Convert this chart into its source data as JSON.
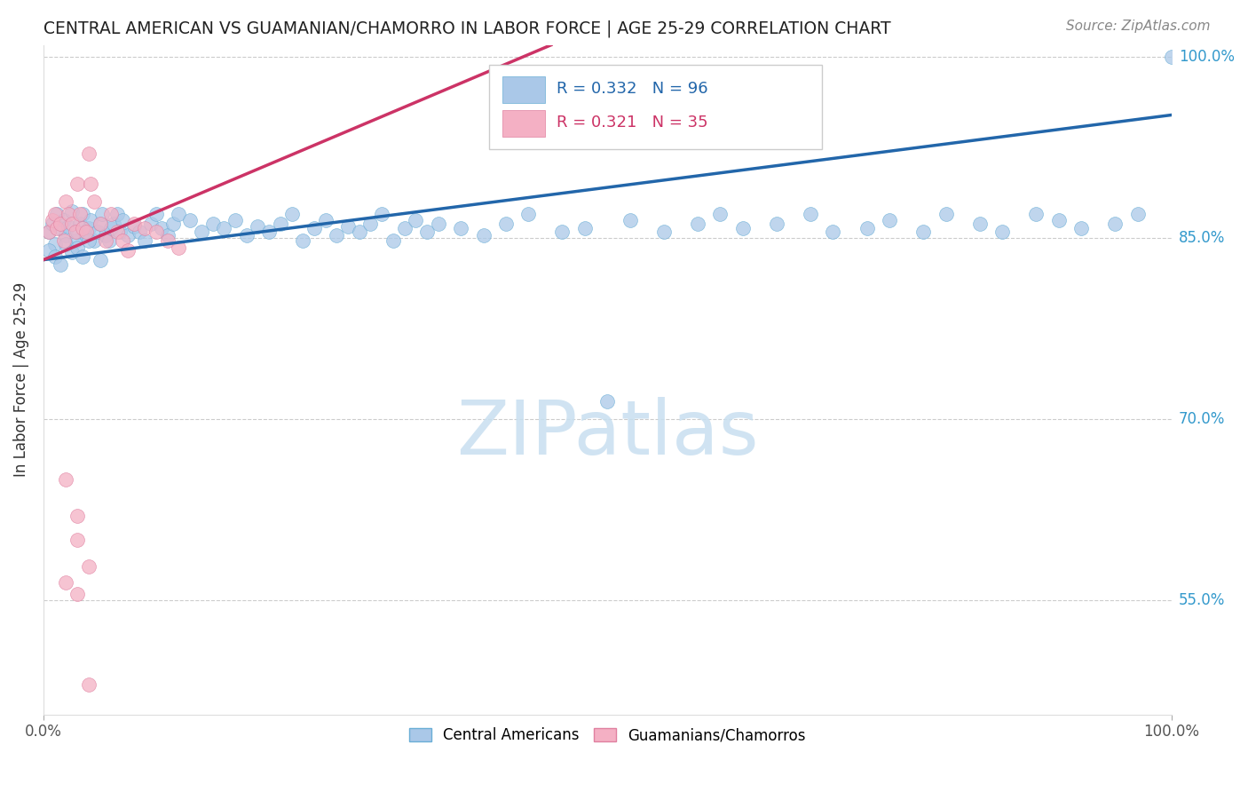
{
  "title": "CENTRAL AMERICAN VS GUAMANIAN/CHAMORRO IN LABOR FORCE | AGE 25-29 CORRELATION CHART",
  "source": "Source: ZipAtlas.com",
  "ylabel": "In Labor Force | Age 25-29",
  "legend_blue_r": "0.332",
  "legend_blue_n": "96",
  "legend_pink_r": "0.321",
  "legend_pink_n": "35",
  "blue_color": "#aac8e8",
  "blue_edge_color": "#6aaed6",
  "blue_line_color": "#2266aa",
  "pink_color": "#f4b0c4",
  "pink_edge_color": "#e080a0",
  "pink_line_color": "#cc3366",
  "right_tick_color": "#3399cc",
  "watermark_color": "#c8dff0",
  "grid_color": "#cccccc",
  "title_color": "#222222",
  "source_color": "#888888",
  "xlim": [
    0.0,
    1.0
  ],
  "ylim": [
    0.455,
    1.01
  ],
  "yticks": [
    0.55,
    0.7,
    0.85,
    1.0
  ],
  "ytick_labels": [
    "55.0%",
    "70.0%",
    "85.0%",
    "100.0%"
  ],
  "blue_line_x": [
    0.0,
    1.0
  ],
  "blue_line_y": [
    0.832,
    0.952
  ],
  "pink_line_x": [
    0.0,
    0.45
  ],
  "pink_line_y": [
    0.832,
    1.01
  ],
  "blue_x": [
    0.005,
    0.008,
    0.01,
    0.012,
    0.015,
    0.018,
    0.02,
    0.022,
    0.025,
    0.028,
    0.03,
    0.032,
    0.035,
    0.038,
    0.04,
    0.042,
    0.045,
    0.048,
    0.05,
    0.052,
    0.055,
    0.058,
    0.06,
    0.062,
    0.065,
    0.068,
    0.07,
    0.075,
    0.08,
    0.085,
    0.09,
    0.095,
    0.1,
    0.105,
    0.11,
    0.115,
    0.12,
    0.13,
    0.14,
    0.15,
    0.16,
    0.17,
    0.18,
    0.19,
    0.2,
    0.21,
    0.22,
    0.23,
    0.24,
    0.25,
    0.26,
    0.27,
    0.28,
    0.29,
    0.3,
    0.31,
    0.32,
    0.33,
    0.34,
    0.35,
    0.37,
    0.39,
    0.41,
    0.43,
    0.46,
    0.48,
    0.5,
    0.52,
    0.55,
    0.58,
    0.6,
    0.62,
    0.65,
    0.68,
    0.7,
    0.73,
    0.75,
    0.78,
    0.8,
    0.83,
    0.85,
    0.88,
    0.9,
    0.92,
    0.95,
    0.97,
    1.0,
    0.005,
    0.01,
    0.015,
    0.02,
    0.025,
    0.03,
    0.035,
    0.04,
    0.05
  ],
  "blue_y": [
    0.855,
    0.862,
    0.845,
    0.87,
    0.858,
    0.865,
    0.852,
    0.86,
    0.872,
    0.848,
    0.855,
    0.862,
    0.87,
    0.852,
    0.858,
    0.865,
    0.848,
    0.855,
    0.862,
    0.87,
    0.852,
    0.848,
    0.858,
    0.862,
    0.87,
    0.855,
    0.865,
    0.852,
    0.86,
    0.855,
    0.848,
    0.862,
    0.87,
    0.858,
    0.852,
    0.862,
    0.87,
    0.865,
    0.855,
    0.862,
    0.858,
    0.865,
    0.852,
    0.86,
    0.855,
    0.862,
    0.87,
    0.848,
    0.858,
    0.865,
    0.852,
    0.86,
    0.855,
    0.862,
    0.87,
    0.848,
    0.858,
    0.865,
    0.855,
    0.862,
    0.858,
    0.852,
    0.862,
    0.87,
    0.855,
    0.858,
    0.715,
    0.865,
    0.855,
    0.862,
    0.87,
    0.858,
    0.862,
    0.87,
    0.855,
    0.858,
    0.865,
    0.855,
    0.87,
    0.862,
    0.855,
    0.87,
    0.865,
    0.858,
    0.862,
    0.87,
    1.0,
    0.84,
    0.835,
    0.828,
    0.845,
    0.838,
    0.842,
    0.835,
    0.848,
    0.832
  ],
  "pink_x": [
    0.005,
    0.008,
    0.01,
    0.012,
    0.015,
    0.018,
    0.02,
    0.022,
    0.025,
    0.028,
    0.03,
    0.032,
    0.035,
    0.038,
    0.04,
    0.042,
    0.045,
    0.05,
    0.055,
    0.06,
    0.065,
    0.07,
    0.075,
    0.08,
    0.09,
    0.1,
    0.11,
    0.12,
    0.02,
    0.03,
    0.03,
    0.04,
    0.02,
    0.03,
    0.04
  ],
  "pink_y": [
    0.855,
    0.865,
    0.87,
    0.858,
    0.862,
    0.848,
    0.88,
    0.87,
    0.862,
    0.855,
    0.895,
    0.87,
    0.858,
    0.855,
    0.92,
    0.895,
    0.88,
    0.862,
    0.848,
    0.87,
    0.855,
    0.848,
    0.84,
    0.862,
    0.858,
    0.855,
    0.848,
    0.842,
    0.65,
    0.62,
    0.6,
    0.578,
    0.565,
    0.555,
    0.48
  ]
}
